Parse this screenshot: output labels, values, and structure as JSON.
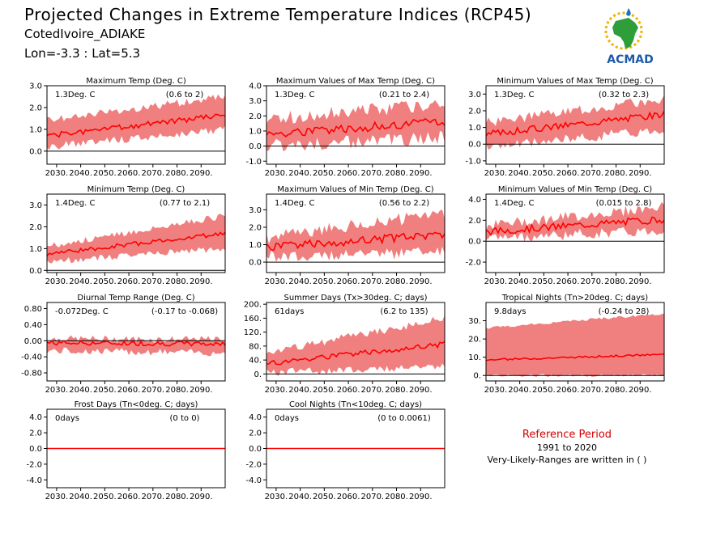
{
  "header": {
    "title": "Projected Changes in Extreme Temperature Indices (RCP45)",
    "location": "CotedIvoire_ADIAKE",
    "coords": "Lon=-3.3 : Lat=5.3",
    "logo_text": "ACMAD"
  },
  "reference": {
    "title": "Reference Period",
    "years": "1991 to 2020",
    "note": "Very-Likely-Ranges are written in ( )"
  },
  "colors": {
    "band": "#f08080",
    "line": "#ff0000",
    "zero": "#000000",
    "ref_title": "#d40000"
  },
  "x_tick_labels": [
    "2030.",
    "2040.",
    "2050.",
    "2060.",
    "2070.",
    "2080.",
    "2090."
  ],
  "chart_data": [
    {
      "type": "line",
      "title": "Maximum Temp (Deg. C)",
      "value_label": "1.3Deg. C",
      "range_label": "(0.6 to 2)",
      "xlim": [
        2026,
        2100
      ],
      "ylim": [
        -0.6,
        3.0
      ],
      "yticks": [
        0.0,
        1.0,
        2.0,
        3.0
      ],
      "ytick_labels": [
        "0.0",
        "1.0",
        "2.0",
        "3.0"
      ],
      "start": 0.7,
      "end": 1.65,
      "low_start": 0.2,
      "low_end": 1.0,
      "high_start": 1.4,
      "high_end": 2.5,
      "noise": 0.12,
      "seed": 1
    },
    {
      "type": "line",
      "title": "Maximum Values of Max Temp (Deg. C)",
      "value_label": "1.3Deg. C",
      "range_label": "(0.21 to 2.4)",
      "xlim": [
        2026,
        2100
      ],
      "ylim": [
        -1.2,
        4.0
      ],
      "yticks": [
        -1.0,
        0.0,
        1.0,
        2.0,
        3.0,
        4.0
      ],
      "ytick_labels": [
        "-1.0",
        "0.0",
        "1.0",
        "2.0",
        "3.0",
        "4.0"
      ],
      "start": 0.8,
      "end": 1.6,
      "low_start": 0.0,
      "low_end": 0.6,
      "high_start": 1.8,
      "high_end": 2.8,
      "noise": 0.3,
      "seed": 2
    },
    {
      "type": "line",
      "title": "Minimum Values of Max Temp (Deg. C)",
      "value_label": "1.3Deg. C",
      "range_label": "(0.32 to 2.3)",
      "xlim": [
        2026,
        2100
      ],
      "ylim": [
        -1.2,
        3.5
      ],
      "yticks": [
        -1.0,
        0.0,
        1.0,
        2.0,
        3.0
      ],
      "ytick_labels": [
        "-1.0",
        "0.0",
        "1.0",
        "2.0",
        "3.0"
      ],
      "start": 0.6,
      "end": 1.8,
      "low_start": -0.2,
      "low_end": 0.9,
      "high_start": 1.3,
      "high_end": 2.7,
      "noise": 0.2,
      "seed": 3
    },
    {
      "type": "line",
      "title": "Minimum Temp (Deg. C)",
      "value_label": "1.4Deg. C",
      "range_label": "(0.77 to 2.1)",
      "xlim": [
        2026,
        2100
      ],
      "ylim": [
        -0.1,
        3.5
      ],
      "yticks": [
        0.0,
        1.0,
        2.0,
        3.0
      ],
      "ytick_labels": [
        "0.0",
        "1.0",
        "2.0",
        "3.0"
      ],
      "start": 0.75,
      "end": 1.7,
      "low_start": 0.4,
      "low_end": 1.0,
      "high_start": 1.1,
      "high_end": 2.5,
      "noise": 0.1,
      "seed": 4
    },
    {
      "type": "line",
      "title": "Maximum Values of Min Temp (Deg. C)",
      "value_label": "1.4Deg. C",
      "range_label": "(0.56 to 2.2)",
      "xlim": [
        2026,
        2100
      ],
      "ylim": [
        -0.6,
        3.9
      ],
      "yticks": [
        0.0,
        1.0,
        2.0,
        3.0
      ],
      "ytick_labels": [
        "0.0",
        "1.0",
        "2.0",
        "3.0"
      ],
      "start": 0.85,
      "end": 1.6,
      "low_start": 0.3,
      "low_end": 0.6,
      "high_start": 1.4,
      "high_end": 2.8,
      "noise": 0.25,
      "seed": 5
    },
    {
      "type": "line",
      "title": "Minimum Values of Min Temp (Deg. C)",
      "value_label": "1.4Deg. C",
      "range_label": "(0.015 to 2.8)",
      "xlim": [
        2026,
        2100
      ],
      "ylim": [
        -3.0,
        4.5
      ],
      "yticks": [
        -2.0,
        0.0,
        2.0,
        4.0
      ],
      "ytick_labels": [
        "-2.0",
        "0.0",
        "2.0",
        "4.0"
      ],
      "start": 0.9,
      "end": 2.1,
      "low_start": 0.3,
      "low_end": 1.0,
      "high_start": 1.5,
      "high_end": 3.3,
      "noise": 0.35,
      "seed": 6
    },
    {
      "type": "line",
      "title": "Diurnal Temp Range (Deg. C)",
      "value_label": "-0.072Deg. C",
      "range_label": "(-0.17 to -0.068)",
      "xlim": [
        2026,
        2100
      ],
      "ylim": [
        -1.0,
        0.95
      ],
      "yticks": [
        -0.8,
        -0.4,
        0.0,
        0.4,
        0.8
      ],
      "ytick_labels": [
        "-0.80",
        "-0.40",
        "0.00",
        "0.40",
        "0.80"
      ],
      "start": -0.05,
      "end": -0.08,
      "low_start": -0.25,
      "low_end": -0.3,
      "high_start": 0.05,
      "high_end": 0.03,
      "noise": 0.06,
      "seed": 7
    },
    {
      "type": "line",
      "title": "Summer Days (Tx>30deg. C; days)",
      "value_label": "61days",
      "range_label": "(6.2 to 135)",
      "xlim": [
        2026,
        2100
      ],
      "ylim": [
        -20,
        205
      ],
      "yticks": [
        0,
        40,
        80,
        120,
        160,
        200
      ],
      "ytick_labels": [
        "0.",
        "40.",
        "80.",
        "120.",
        "160.",
        "200."
      ],
      "start": 30,
      "end": 85,
      "low_start": 5,
      "low_end": 20,
      "high_start": 60,
      "high_end": 160,
      "noise": 8,
      "seed": 8
    },
    {
      "type": "line",
      "title": "Tropical Nights (Tn>20deg. C; days)",
      "value_label": "9.8days",
      "range_label": "(-0.24 to 28)",
      "xlim": [
        2026,
        2100
      ],
      "ylim": [
        -3,
        40
      ],
      "yticks": [
        0,
        10,
        20,
        30
      ],
      "ytick_labels": [
        "0.",
        "10.",
        "20.",
        "30."
      ],
      "start": 8.5,
      "end": 11.5,
      "low_start": 0.0,
      "low_end": 0.0,
      "high_start": 26,
      "high_end": 34,
      "noise": 0.5,
      "seed": 9
    },
    {
      "type": "line",
      "title": "Frost Days (Tn<0deg. C; days)",
      "value_label": "0days",
      "range_label": "(0 to 0)",
      "xlim": [
        2026,
        2100
      ],
      "ylim": [
        -5.0,
        5.0
      ],
      "yticks": [
        -4.0,
        -2.0,
        0.0,
        2.0,
        4.0
      ],
      "ytick_labels": [
        "-4.0",
        "-2.0",
        "0.0",
        "2.0",
        "4.0"
      ],
      "start": 0.0,
      "end": 0.0,
      "low_start": 0.0,
      "low_end": 0.0,
      "high_start": 0.0,
      "high_end": 0.0,
      "noise": 0.0,
      "seed": 10
    },
    {
      "type": "line",
      "title": "Cool Nights (Tn<10deg. C; days)",
      "value_label": "0days",
      "range_label": "(0 to 0.0061)",
      "xlim": [
        2026,
        2100
      ],
      "ylim": [
        -5.0,
        5.0
      ],
      "yticks": [
        -4.0,
        -2.0,
        0.0,
        2.0,
        4.0
      ],
      "ytick_labels": [
        "-4.0",
        "-2.0",
        "0.0",
        "2.0",
        "4.0"
      ],
      "start": 0.0,
      "end": 0.0,
      "low_start": 0.0,
      "low_end": 0.0,
      "high_start": 0.0,
      "high_end": 0.0,
      "noise": 0.0,
      "seed": 11
    }
  ]
}
